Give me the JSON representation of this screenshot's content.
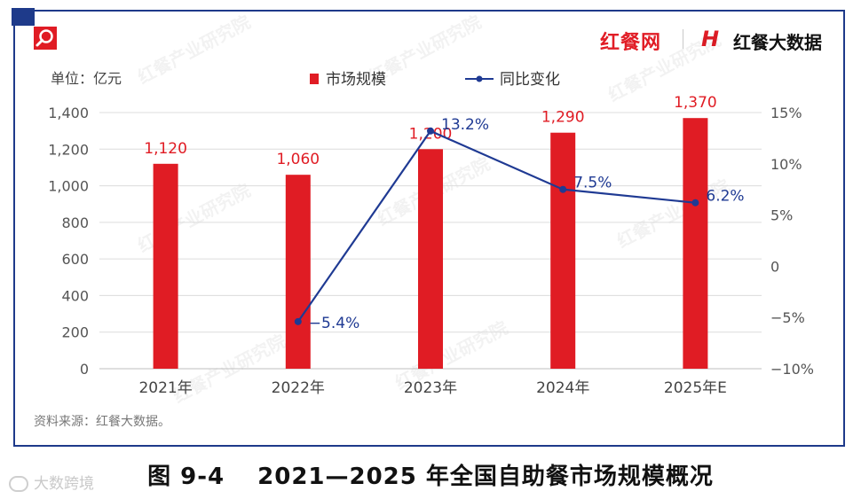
{
  "brand": {
    "left_logo": "红餐网",
    "right_logo_mark": "H",
    "right_logo_text": "红餐大数据",
    "watermark": "红餐产业研究院",
    "corner_watermark": "大数跨境"
  },
  "figure_caption": "图 9-4　 2021—2025 年全国自助餐市场规模概况",
  "colors": {
    "bar": "#e01c24",
    "line": "#1f3a93",
    "frame": "#1e3a8a",
    "grid": "#dcdcdc"
  },
  "chart_data": {
    "type": "bar",
    "categories": [
      "2021年",
      "2022年",
      "2023年",
      "2024年",
      "2025年E"
    ],
    "unit_label": "单位：亿元",
    "source": "资料来源：红餐大数据。",
    "legend_position": "top-center",
    "grid": true,
    "series": [
      {
        "name": "市场规模",
        "type": "bar",
        "axis": "left",
        "values": [
          1120,
          1060,
          1200,
          1290,
          1370
        ],
        "labels": [
          "1,120",
          "1,060",
          "1,200",
          "1,290",
          "1,370"
        ]
      },
      {
        "name": "同比变化",
        "type": "line",
        "axis": "right",
        "values": [
          null,
          -5.4,
          13.2,
          7.5,
          6.2
        ],
        "labels": [
          "",
          "−5.4%",
          "13.2%",
          "7.5%",
          "6.2%"
        ]
      }
    ],
    "y_left": {
      "min": 0,
      "max": 1400,
      "ticks": [
        0,
        200,
        400,
        600,
        800,
        1000,
        1200,
        1400
      ],
      "tick_labels": [
        "0",
        "200",
        "400",
        "600",
        "800",
        "1,000",
        "1,200",
        "1,400"
      ]
    },
    "y_right": {
      "min": -10,
      "max": 15,
      "ticks": [
        -10,
        -5,
        0,
        5,
        10,
        15
      ],
      "tick_labels": [
        "−10%",
        "−5%",
        "0",
        "5%",
        "10%",
        "15%"
      ]
    }
  }
}
